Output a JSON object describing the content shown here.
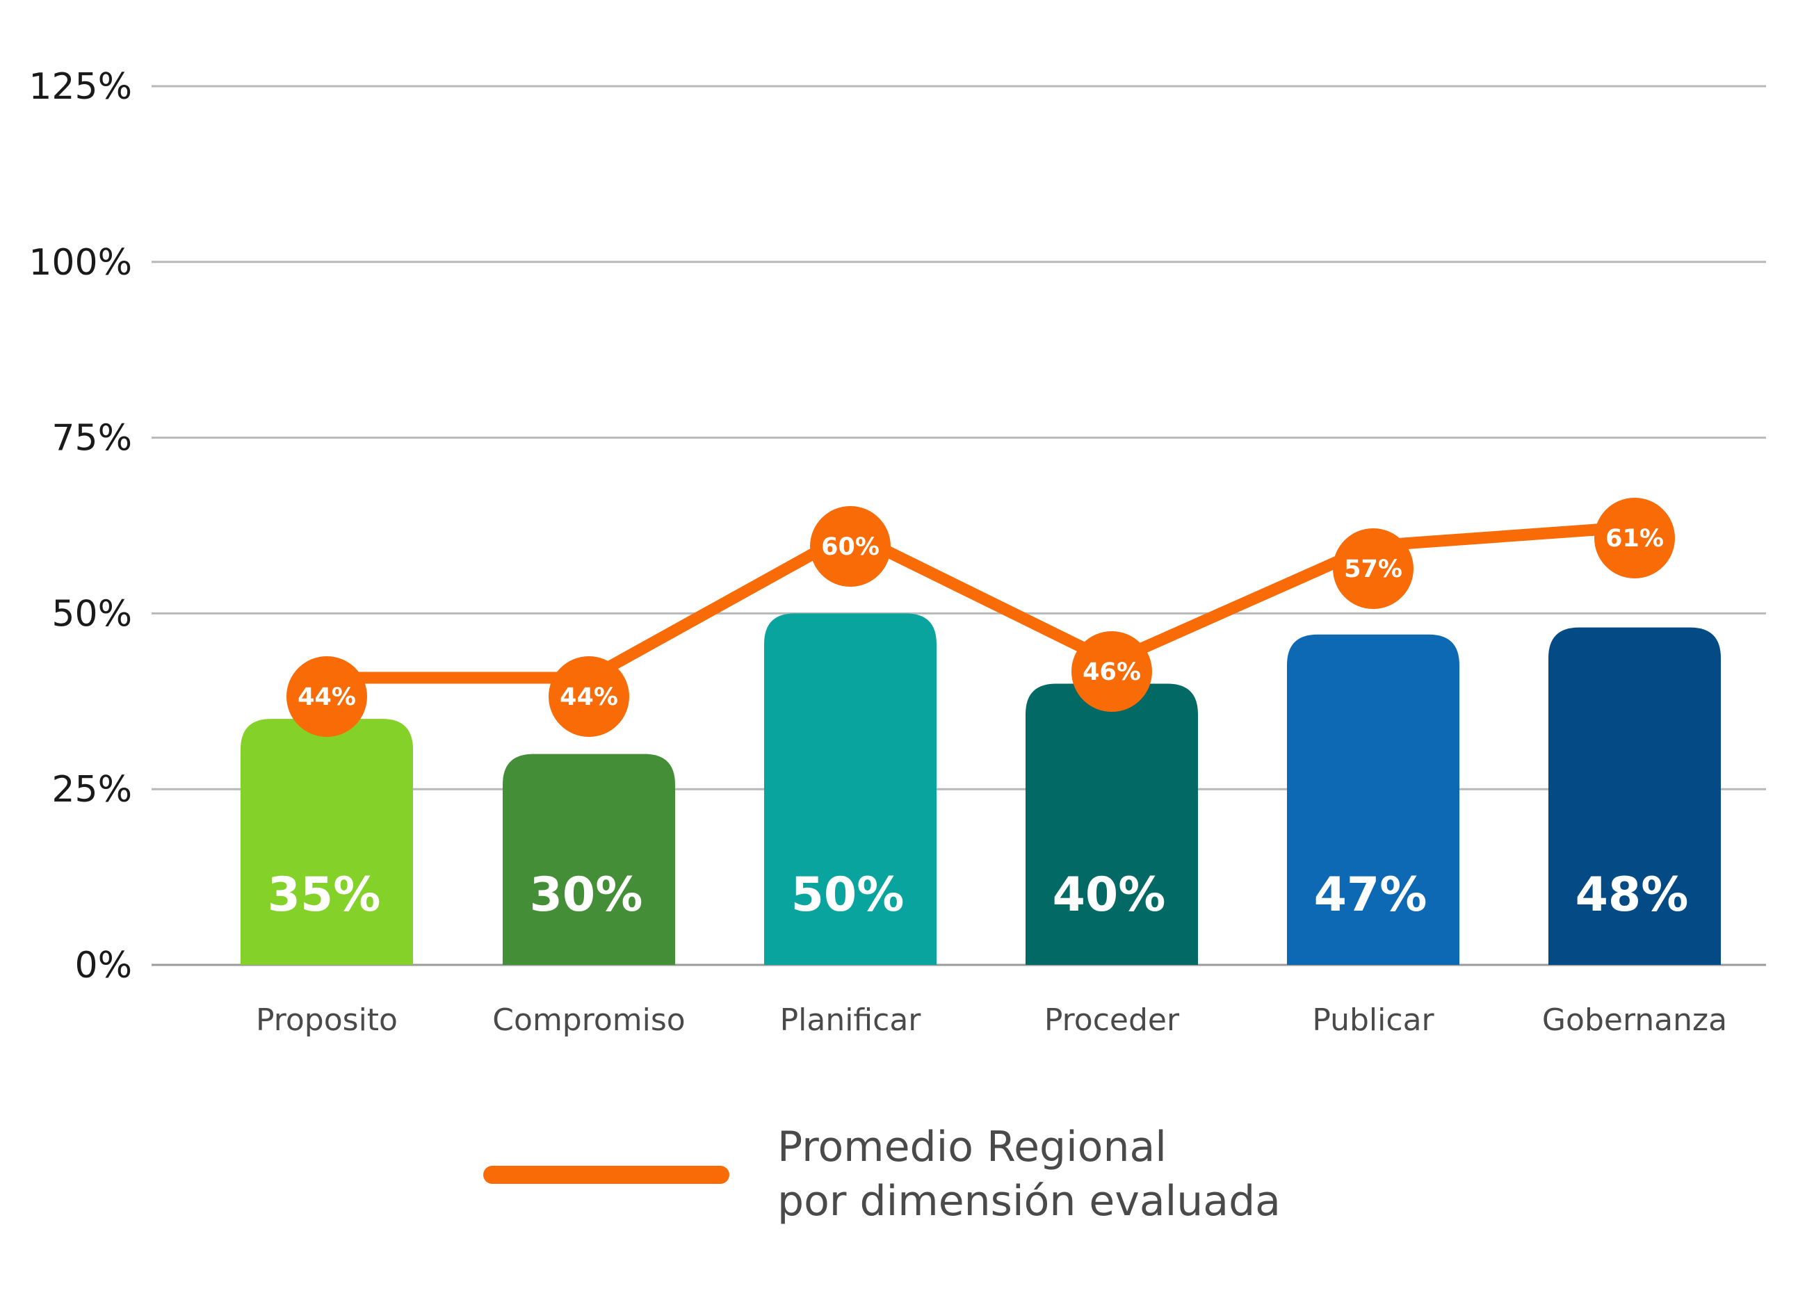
{
  "chart_data": {
    "type": "bar",
    "categories": [
      "Proposito",
      "Compromiso",
      "Planificar",
      "Proceder",
      "Publicar",
      "Gobernanza"
    ],
    "series": [
      {
        "values": [
          35,
          30,
          50,
          40,
          47,
          48
        ],
        "labels": [
          "35%",
          "30%",
          "50%",
          "40%",
          "47%",
          "48%"
        ],
        "colors": [
          "#84d12a",
          "#448e37",
          "#0aa49f",
          "#026964",
          "#0d69b3",
          "#044a85"
        ]
      },
      {
        "name": "Promedio Regional por dimensión evaluada",
        "type": "line",
        "values": [
          44,
          44,
          60,
          46,
          57,
          61
        ],
        "labels": [
          "44%",
          "44%",
          "60%",
          "46%",
          "57%",
          "61%"
        ],
        "color": "#f86b06"
      }
    ],
    "ylim": [
      0,
      125
    ],
    "yticks": [
      "0%",
      "25%",
      "50%",
      "75%",
      "100%",
      "125%"
    ],
    "grid": true,
    "legend": {
      "position": "bottom-center",
      "line1": "Promedio Regional",
      "line2": "por dimensión evaluada"
    }
  }
}
